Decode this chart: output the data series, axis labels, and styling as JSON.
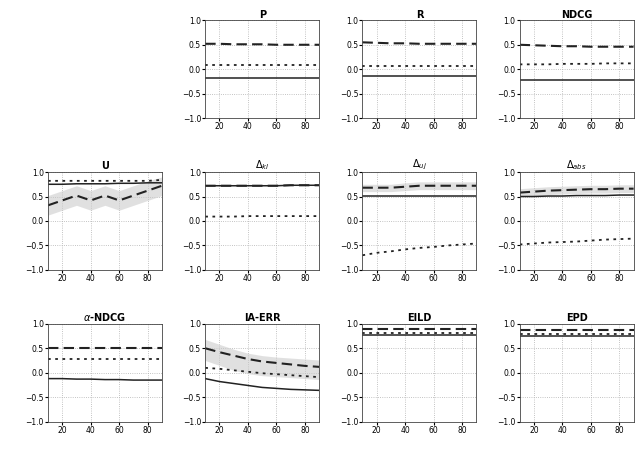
{
  "x": [
    10,
    20,
    30,
    40,
    50,
    60,
    70,
    80,
    90
  ],
  "subplots": {
    "P": {
      "dashed": [
        0.52,
        0.52,
        0.51,
        0.51,
        0.51,
        0.5,
        0.5,
        0.5,
        0.5
      ],
      "dotted": [
        0.08,
        0.08,
        0.08,
        0.08,
        0.08,
        0.08,
        0.08,
        0.08,
        0.08
      ],
      "solid": [
        -0.17,
        -0.17,
        -0.17,
        -0.17,
        -0.17,
        -0.17,
        -0.17,
        -0.17,
        -0.17
      ],
      "shade": null
    },
    "R": {
      "dashed": [
        0.55,
        0.54,
        0.53,
        0.53,
        0.52,
        0.52,
        0.52,
        0.52,
        0.52
      ],
      "dotted": [
        0.07,
        0.07,
        0.07,
        0.07,
        0.07,
        0.07,
        0.07,
        0.07,
        0.07
      ],
      "solid": [
        -0.14,
        -0.14,
        -0.14,
        -0.14,
        -0.14,
        -0.14,
        -0.14,
        -0.14,
        -0.14
      ],
      "shade": null
    },
    "NDCG": {
      "dashed": [
        0.5,
        0.49,
        0.48,
        0.47,
        0.47,
        0.46,
        0.46,
        0.46,
        0.46
      ],
      "dotted": [
        0.1,
        0.1,
        0.1,
        0.11,
        0.11,
        0.11,
        0.12,
        0.12,
        0.12
      ],
      "solid": [
        -0.22,
        -0.22,
        -0.22,
        -0.22,
        -0.22,
        -0.22,
        -0.22,
        -0.22,
        -0.22
      ],
      "shade": null
    },
    "U": {
      "solid": [
        0.75,
        0.75,
        0.76,
        0.76,
        0.76,
        0.77,
        0.77,
        0.78,
        0.78
      ],
      "dotted": [
        0.82,
        0.82,
        0.82,
        0.82,
        0.82,
        0.82,
        0.82,
        0.82,
        0.84
      ],
      "dashed": [
        0.32,
        0.42,
        0.52,
        0.42,
        0.52,
        0.42,
        0.52,
        0.62,
        0.72
      ],
      "shade_lo": [
        0.12,
        0.22,
        0.32,
        0.22,
        0.32,
        0.22,
        0.32,
        0.42,
        0.52
      ],
      "shade_hi": [
        0.52,
        0.62,
        0.72,
        0.62,
        0.72,
        0.62,
        0.72,
        0.82,
        0.9
      ]
    },
    "Delta_kl": {
      "dashed": [
        0.72,
        0.72,
        0.72,
        0.72,
        0.72,
        0.72,
        0.73,
        0.73,
        0.73
      ],
      "dotted": [
        0.09,
        0.09,
        0.09,
        0.1,
        0.1,
        0.1,
        0.1,
        0.1,
        0.1
      ],
      "solid": [
        0.72,
        0.72,
        0.72,
        0.72,
        0.72,
        0.72,
        0.73,
        0.73,
        0.73
      ],
      "shade": null
    },
    "Delta_uj": {
      "dashed": [
        0.68,
        0.68,
        0.68,
        0.7,
        0.72,
        0.72,
        0.72,
        0.72,
        0.72
      ],
      "dotted": [
        -0.7,
        -0.65,
        -0.62,
        -0.58,
        -0.55,
        -0.53,
        -0.5,
        -0.48,
        -0.46
      ],
      "solid": [
        0.52,
        0.52,
        0.52,
        0.52,
        0.52,
        0.52,
        0.52,
        0.52,
        0.52
      ],
      "shade_lo": [
        0.6,
        0.6,
        0.6,
        0.62,
        0.64,
        0.64,
        0.64,
        0.64,
        0.64
      ],
      "shade_hi": [
        0.75,
        0.75,
        0.75,
        0.78,
        0.8,
        0.8,
        0.8,
        0.8,
        0.8
      ]
    },
    "Delta_abs": {
      "dashed": [
        0.58,
        0.6,
        0.62,
        0.63,
        0.64,
        0.65,
        0.65,
        0.66,
        0.66
      ],
      "dotted": [
        -0.48,
        -0.46,
        -0.44,
        -0.43,
        -0.42,
        -0.4,
        -0.38,
        -0.37,
        -0.36
      ],
      "solid": [
        0.5,
        0.5,
        0.51,
        0.51,
        0.52,
        0.52,
        0.52,
        0.53,
        0.53
      ],
      "shade_lo": [
        0.5,
        0.52,
        0.54,
        0.55,
        0.56,
        0.57,
        0.57,
        0.58,
        0.58
      ],
      "shade_hi": [
        0.66,
        0.68,
        0.7,
        0.71,
        0.72,
        0.73,
        0.73,
        0.74,
        0.74
      ]
    },
    "alpha_NDCG": {
      "dashed": [
        0.5,
        0.5,
        0.5,
        0.5,
        0.5,
        0.5,
        0.5,
        0.5,
        0.5
      ],
      "dotted": [
        0.28,
        0.28,
        0.28,
        0.28,
        0.28,
        0.28,
        0.28,
        0.28,
        0.28
      ],
      "solid": [
        -0.12,
        -0.12,
        -0.13,
        -0.13,
        -0.14,
        -0.14,
        -0.15,
        -0.15,
        -0.15
      ],
      "shade": null
    },
    "IA_ERR": {
      "dashed": [
        0.5,
        0.42,
        0.35,
        0.28,
        0.23,
        0.2,
        0.17,
        0.14,
        0.12
      ],
      "dotted": [
        0.1,
        0.08,
        0.05,
        0.02,
        -0.01,
        -0.03,
        -0.05,
        -0.07,
        -0.09
      ],
      "solid": [
        -0.12,
        -0.18,
        -0.22,
        -0.26,
        -0.3,
        -0.32,
        -0.34,
        -0.35,
        -0.36
      ],
      "shade_lo": [
        0.25,
        0.15,
        0.05,
        -0.02,
        -0.06,
        -0.08,
        -0.1,
        -0.12,
        -0.14
      ],
      "shade_hi": [
        0.68,
        0.58,
        0.48,
        0.4,
        0.35,
        0.32,
        0.3,
        0.28,
        0.26
      ]
    },
    "EILD": {
      "dashed": [
        0.9,
        0.9,
        0.9,
        0.9,
        0.9,
        0.9,
        0.9,
        0.9,
        0.9
      ],
      "dotted": [
        0.82,
        0.82,
        0.82,
        0.82,
        0.82,
        0.82,
        0.82,
        0.82,
        0.82
      ],
      "solid": [
        0.78,
        0.78,
        0.78,
        0.78,
        0.78,
        0.78,
        0.78,
        0.78,
        0.78
      ],
      "shade": null
    },
    "EPD": {
      "dashed": [
        0.88,
        0.88,
        0.88,
        0.88,
        0.88,
        0.88,
        0.88,
        0.88,
        0.88
      ],
      "dotted": [
        0.8,
        0.8,
        0.8,
        0.8,
        0.8,
        0.8,
        0.8,
        0.8,
        0.8
      ],
      "solid": [
        0.75,
        0.75,
        0.75,
        0.75,
        0.75,
        0.75,
        0.75,
        0.75,
        0.75
      ],
      "shade": null
    }
  },
  "subplot_layout": [
    [
      null,
      "P",
      "R",
      "NDCG"
    ],
    [
      "U",
      "Delta_kl",
      "Delta_uj",
      "Delta_abs"
    ],
    [
      "alpha_NDCG",
      "IA_ERR",
      "EILD",
      "EPD"
    ]
  ],
  "subplot_titles": {
    "P": "P",
    "R": "R",
    "NDCG": "NDCG",
    "U": "U",
    "Delta_kl": "$\\Delta_{kl}$",
    "Delta_uj": "$\\Delta_{uj}$",
    "Delta_abs": "$\\Delta_{abs}$",
    "alpha_NDCG": "$\\alpha$-NDCG",
    "IA_ERR": "IA-ERR",
    "EILD": "EILD",
    "EPD": "EPD"
  },
  "ylim": [
    -1.0,
    1.0
  ],
  "yticks": [
    -1.0,
    -0.5,
    0.0,
    0.5,
    1.0
  ],
  "xticks": [
    20,
    40,
    60,
    80
  ],
  "xlim": [
    10,
    90
  ],
  "bg_color": "#ffffff",
  "grid_color": "#b0b0b0",
  "line_color": "#222222",
  "shade_color": "#c8c8c8"
}
